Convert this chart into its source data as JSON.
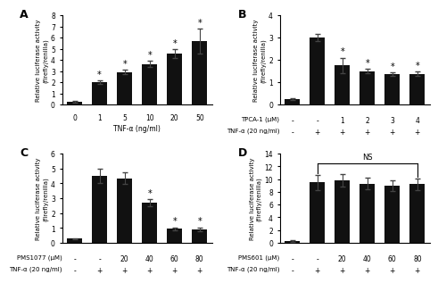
{
  "panel_A": {
    "label": "A",
    "x_row1": [
      "0",
      "1",
      "5",
      "10",
      "20",
      "50"
    ],
    "x_row2": null,
    "x_xlabel1": "TNF-α (ng/ml)",
    "x_xlabel2": null,
    "values": [
      0.25,
      2.0,
      2.9,
      3.65,
      4.55,
      5.7
    ],
    "errors": [
      0.05,
      0.15,
      0.2,
      0.25,
      0.4,
      1.1
    ],
    "stars": [
      false,
      true,
      true,
      true,
      true,
      true
    ],
    "ylim": [
      0,
      8
    ],
    "yticks": [
      0,
      1,
      2,
      3,
      4,
      5,
      6,
      7,
      8
    ],
    "ylabel": "Relative luciferase activity\n(firefly/renilla)",
    "two_row_xlabel": false
  },
  "panel_B": {
    "label": "B",
    "x_row1": [
      "-",
      "-",
      "1",
      "2",
      "3",
      "4"
    ],
    "x_row2": [
      "-",
      "+",
      "+",
      "+",
      "+",
      "+"
    ],
    "x_xlabel1": "TPCA-1 (μM)",
    "x_xlabel2": "TNF-α (20 ng/ml)",
    "values": [
      0.25,
      3.0,
      1.75,
      1.5,
      1.35,
      1.38
    ],
    "errors": [
      0.05,
      0.15,
      0.35,
      0.1,
      0.08,
      0.1
    ],
    "stars": [
      false,
      false,
      true,
      true,
      true,
      true
    ],
    "ylim": [
      0,
      4
    ],
    "yticks": [
      0,
      1,
      2,
      3,
      4
    ],
    "ylabel": "Relative luciferase activity\n(firefly/renilla)",
    "two_row_xlabel": true
  },
  "panel_C": {
    "label": "C",
    "x_row1": [
      "-",
      "-",
      "20",
      "40",
      "60",
      "80"
    ],
    "x_row2": [
      "-",
      "+",
      "+",
      "+",
      "+",
      "+"
    ],
    "x_xlabel1": "PMS1077 (μM)",
    "x_xlabel2": "TNF-α (20 ng/ml)",
    "values": [
      0.28,
      4.5,
      4.35,
      2.7,
      0.95,
      0.92
    ],
    "errors": [
      0.05,
      0.5,
      0.4,
      0.25,
      0.1,
      0.12
    ],
    "stars": [
      false,
      false,
      false,
      true,
      true,
      true
    ],
    "ylim": [
      0,
      6
    ],
    "yticks": [
      0,
      1,
      2,
      3,
      4,
      5,
      6
    ],
    "ylabel": "Relative luciferase activity\n(firefly/renilla)",
    "two_row_xlabel": true
  },
  "panel_D": {
    "label": "D",
    "x_row1": [
      "-",
      "-",
      "20",
      "40",
      "60",
      "80"
    ],
    "x_row2": [
      "-",
      "+",
      "+",
      "+",
      "+",
      "+"
    ],
    "x_xlabel1": "PMS601 (μM)",
    "x_xlabel2": "TNF-α (20 ng/ml)",
    "values": [
      0.28,
      9.5,
      9.8,
      9.3,
      9.0,
      9.2
    ],
    "errors": [
      0.1,
      1.2,
      1.0,
      0.9,
      0.8,
      0.9
    ],
    "stars": [
      false,
      false,
      false,
      false,
      false,
      false
    ],
    "ns_bar": true,
    "ylim": [
      0,
      14
    ],
    "yticks": [
      0,
      2,
      4,
      6,
      8,
      10,
      12,
      14
    ],
    "ylabel": "Relative luciferase activity\n(firefly/renilla)",
    "two_row_xlabel": true
  },
  "bar_color": "#111111",
  "error_color": "#444444",
  "star_color": "#000000",
  "bg_color": "#ffffff"
}
